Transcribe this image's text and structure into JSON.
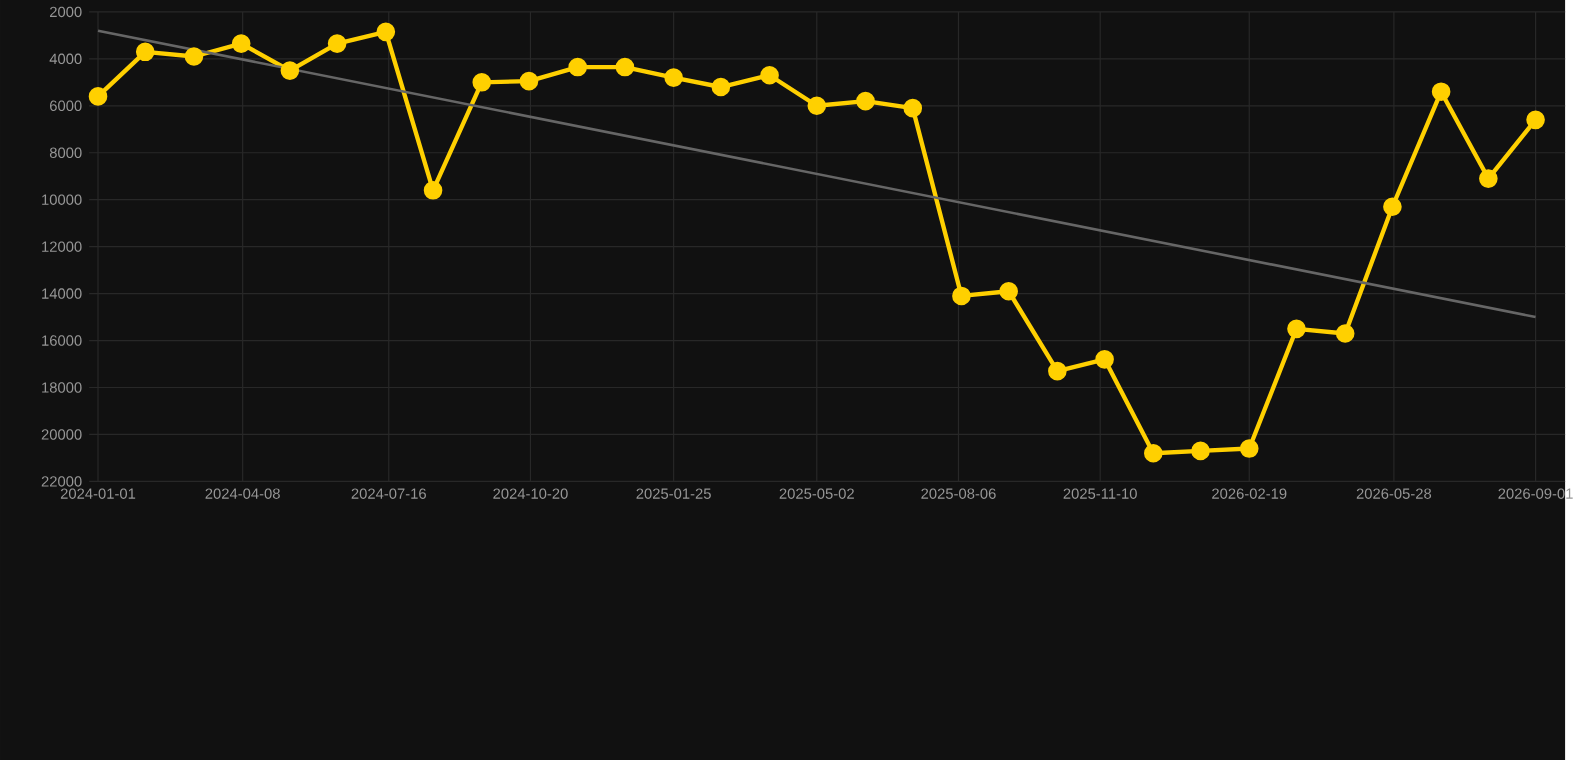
{
  "chart_data": {
    "type": "line",
    "x": [
      "2024-01-01",
      "2024-02-02",
      "2024-03-06",
      "2024-04-07",
      "2024-05-10",
      "2024-06-11",
      "2024-07-14",
      "2024-08-15",
      "2024-09-17",
      "2024-10-19",
      "2024-11-21",
      "2024-12-23",
      "2025-01-25",
      "2025-02-26",
      "2025-03-31",
      "2025-05-02",
      "2025-06-04",
      "2025-07-06",
      "2025-08-08",
      "2025-09-09",
      "2025-10-12",
      "2025-11-13",
      "2025-12-16",
      "2026-01-17",
      "2026-02-19",
      "2026-03-23",
      "2026-04-25",
      "2026-05-27",
      "2026-06-29",
      "2026-07-31",
      "2026-09-01"
    ],
    "series": [
      {
        "color": "#ffd000",
        "values": [
          5600,
          3700,
          3900,
          3350,
          4500,
          3350,
          2850,
          9600,
          5000,
          4950,
          4350,
          4350,
          4800,
          5200,
          4700,
          6000,
          5800,
          6100,
          14100,
          13900,
          17300,
          16800,
          20800,
          20700,
          20600,
          15500,
          15700,
          10300,
          5400,
          9100,
          6600
        ]
      },
      {
        "type": "line",
        "color": "#666666",
        "marker": "none",
        "x": [
          "2024-01-01",
          "2026-09-01"
        ],
        "values": [
          2800,
          15000
        ]
      }
    ],
    "xlim": [
      "2023-12-26",
      "2026-09-21"
    ],
    "ylim": [
      22000,
      2000
    ],
    "xticks": [
      "2024-01-01",
      "2024-04-08",
      "2024-07-16",
      "2024-10-20",
      "2025-01-25",
      "2025-05-02",
      "2025-08-06",
      "2025-11-10",
      "2026-02-19",
      "2026-05-28",
      "2026-09-01"
    ],
    "yticks": [
      2000,
      4000,
      6000,
      8000,
      10000,
      12000,
      14000,
      16000,
      18000,
      20000,
      22000
    ],
    "grid": true,
    "marker": "circle",
    "line_style": "solid"
  }
}
